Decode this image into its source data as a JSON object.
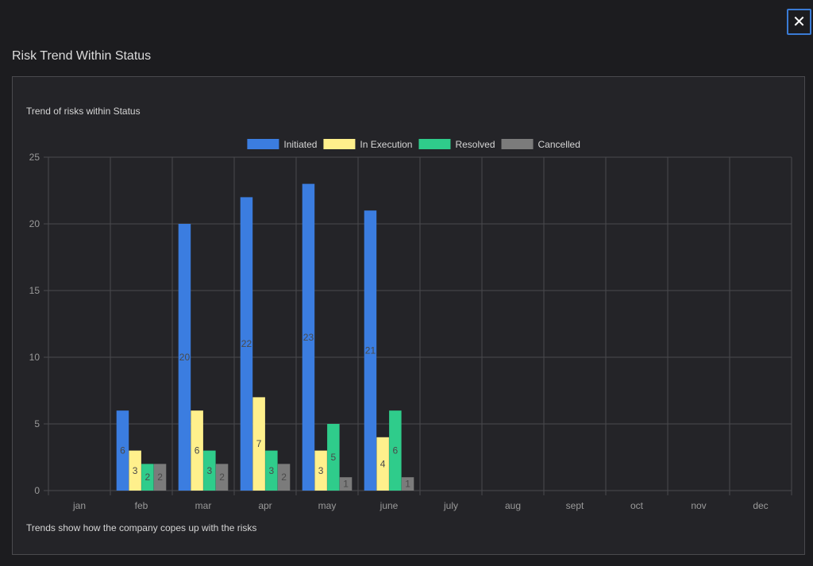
{
  "close_button": {
    "symbol": "✕",
    "icon": "close-icon"
  },
  "modal": {
    "title": "Risk Trend Within Status"
  },
  "chart_panel": {
    "subtitle": "Trend of risks within Status",
    "footer": "Trends show how the company copes up with the risks"
  },
  "colors": {
    "background": "#1c1c1f",
    "panel": "#242428",
    "grid": "#4a4a4e",
    "accent": "#3a7bd5"
  },
  "chart_data": {
    "type": "bar",
    "title": "Trend of risks within Status",
    "xlabel": "",
    "ylabel": "",
    "ylim": [
      0,
      25
    ],
    "yticks": [
      0,
      5,
      10,
      15,
      20,
      25
    ],
    "grid": true,
    "legend_position": "top-center",
    "categories": [
      "jan",
      "feb",
      "mar",
      "apr",
      "may",
      "june",
      "july",
      "aug",
      "sept",
      "oct",
      "nov",
      "dec"
    ],
    "series": [
      {
        "name": "Initiated",
        "color": "#3b7de0",
        "values": [
          null,
          6,
          20,
          22,
          23,
          21,
          null,
          null,
          null,
          null,
          null,
          null
        ]
      },
      {
        "name": "In Execution",
        "color": "#fff08c",
        "values": [
          null,
          3,
          6,
          7,
          3,
          4,
          null,
          null,
          null,
          null,
          null,
          null
        ]
      },
      {
        "name": "Resolved",
        "color": "#2fcc8b",
        "values": [
          null,
          2,
          3,
          3,
          5,
          6,
          null,
          null,
          null,
          null,
          null,
          null
        ]
      },
      {
        "name": "Cancelled",
        "color": "#7b7b7b",
        "values": [
          null,
          2,
          2,
          2,
          1,
          1,
          null,
          null,
          null,
          null,
          null,
          null
        ]
      }
    ]
  }
}
